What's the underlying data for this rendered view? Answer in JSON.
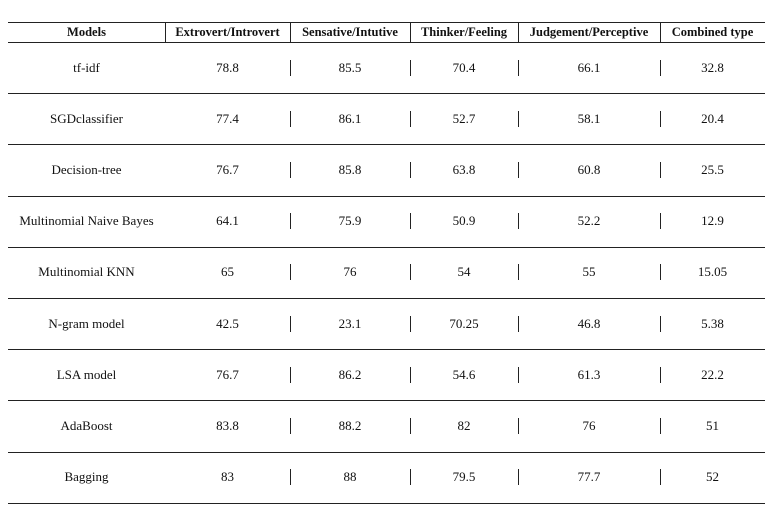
{
  "table": {
    "header": [
      "Models",
      "Extrovert/Introvert",
      "Sensative/Intutive",
      "Thinker/Feeling",
      "Judgement/Perceptive",
      "Combined type"
    ],
    "rows": [
      [
        "tf-idf",
        "78.8",
        "85.5",
        "70.4",
        "66.1",
        "32.8"
      ],
      [
        "SGDclassifier",
        "77.4",
        "86.1",
        "52.7",
        "58.1",
        "20.4"
      ],
      [
        "Decision-tree",
        "76.7",
        "85.8",
        "63.8",
        "60.8",
        "25.5"
      ],
      [
        "Multinomial Naive Bayes",
        "64.1",
        "75.9",
        "50.9",
        "52.2",
        "12.9"
      ],
      [
        "Multinomial KNN",
        "65",
        "76",
        "54",
        "55",
        "15.05"
      ],
      [
        "N-gram model",
        "42.5",
        "23.1",
        "70.25",
        "46.8",
        "5.38"
      ],
      [
        "LSA model",
        "76.7",
        "86.2",
        "54.6",
        "61.3",
        "22.2"
      ],
      [
        "AdaBoost",
        "83.8",
        "88.2",
        "82",
        "76",
        "51"
      ],
      [
        "Bagging",
        "83",
        "88",
        "79.5",
        "77.7",
        "52"
      ]
    ]
  }
}
